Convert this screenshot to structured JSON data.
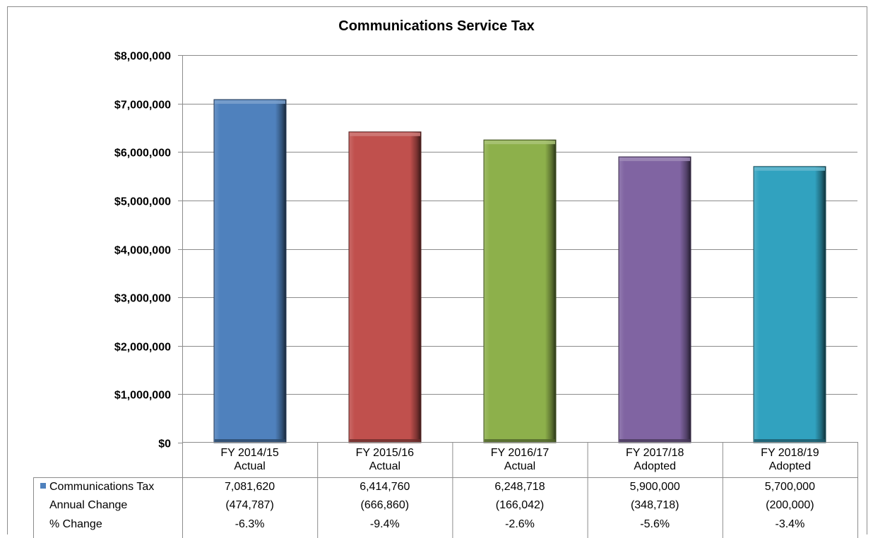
{
  "chart_data": {
    "type": "bar",
    "title": "Communications Service Tax",
    "xlabel": "",
    "ylabel": "",
    "ylim": [
      0,
      8000000
    ],
    "yticks": [
      0,
      1000000,
      2000000,
      3000000,
      4000000,
      5000000,
      6000000,
      7000000,
      8000000
    ],
    "ytick_labels": [
      "$0",
      "$1,000,000",
      "$2,000,000",
      "$3,000,000",
      "$4,000,000",
      "$5,000,000",
      "$6,000,000",
      "$7,000,000",
      "$8,000,000"
    ],
    "grid": true,
    "categories": [
      [
        "FY 2014/15",
        "Actual"
      ],
      [
        "FY 2015/16",
        "Actual"
      ],
      [
        "FY 2016/17",
        "Actual"
      ],
      [
        "FY 2017/18",
        "Adopted"
      ],
      [
        "FY 2018/19",
        "Adopted"
      ]
    ],
    "series": [
      {
        "name": "Communications Tax",
        "values": [
          7081620,
          6414760,
          6248718,
          5900000,
          5700000
        ]
      }
    ],
    "bar_colors": [
      "#4f81bd",
      "#c0504d",
      "#8db04b",
      "#8064a2",
      "#31a2bf"
    ],
    "legend_marker_color": "#4f81bd",
    "data_table": [
      {
        "label": "Communications Tax",
        "has_marker": true,
        "values": [
          "7,081,620",
          "6,414,760",
          "6,248,718",
          "5,900,000",
          "5,700,000"
        ]
      },
      {
        "label": "Annual Change",
        "has_marker": false,
        "values": [
          "(474,787)",
          "(666,860)",
          "(166,042)",
          "(348,718)",
          "(200,000)"
        ]
      },
      {
        "label": "% Change",
        "has_marker": false,
        "values": [
          "-6.3%",
          "-9.4%",
          "-2.6%",
          "-5.6%",
          "-3.4%"
        ]
      }
    ]
  }
}
